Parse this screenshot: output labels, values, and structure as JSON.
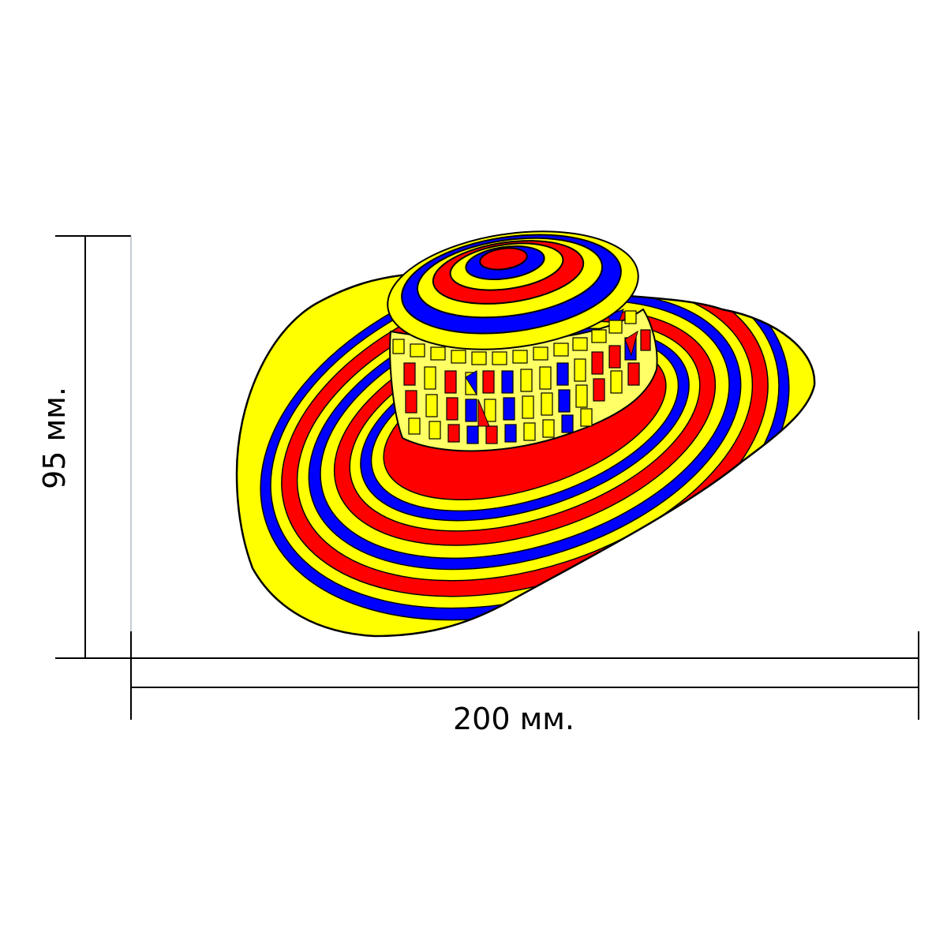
{
  "dimensions": {
    "height_label": "95 мм.",
    "width_label": "200 мм."
  },
  "hat": {
    "name": "sombrero-vueltiao",
    "colors": {
      "yellow": "#ffff00",
      "blue": "#0000ff",
      "red": "#ff0000",
      "outline": "#000000",
      "pale_yellow": "#ffff66"
    }
  }
}
